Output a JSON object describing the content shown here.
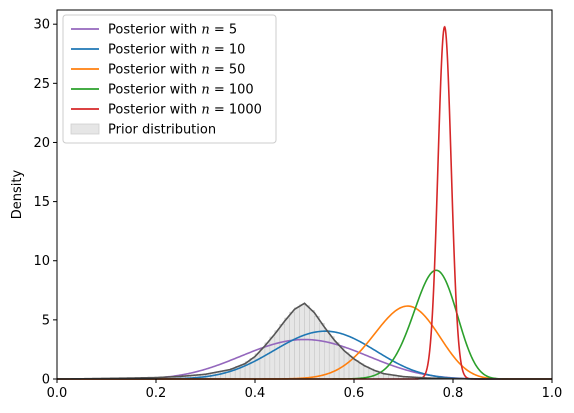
{
  "chart_data": {
    "type": "line",
    "title": "",
    "xlabel": "",
    "ylabel": "Density",
    "xlim": [
      0,
      1
    ],
    "ylim": [
      0,
      31.2
    ],
    "xticks": [
      0.0,
      0.2,
      0.4,
      0.6,
      0.8,
      1.0
    ],
    "xtick_labels": [
      "0.0",
      "0.2",
      "0.4",
      "0.6",
      "0.8",
      "1.0"
    ],
    "yticks": [
      0,
      5,
      10,
      15,
      20,
      25,
      30
    ],
    "ytick_labels": [
      "0",
      "5",
      "10",
      "15",
      "20",
      "25",
      "30"
    ],
    "grid": false,
    "legend": {
      "placement": "top-left",
      "entries": [
        {
          "prefix": "Posterior with ",
          "var": "n",
          "suffix": " = 5",
          "color": "#9467bd",
          "kind": "line"
        },
        {
          "prefix": "Posterior with ",
          "var": "n",
          "suffix": " = 10",
          "color": "#1f77b4",
          "kind": "line"
        },
        {
          "prefix": "Posterior with ",
          "var": "n",
          "suffix": " = 50",
          "color": "#ff7f0e",
          "kind": "line"
        },
        {
          "prefix": "Posterior with ",
          "var": "n",
          "suffix": " = 100",
          "color": "#2ca02c",
          "kind": "line"
        },
        {
          "prefix": "Posterior with ",
          "var": "n",
          "suffix": " = 1000",
          "color": "#d62728",
          "kind": "line"
        },
        {
          "prefix": "Prior distribution",
          "var": "",
          "suffix": "",
          "color": "#e6e6e6",
          "kind": "patch"
        }
      ]
    },
    "prior": {
      "name": "Prior distribution",
      "fill": "#e6e6e6",
      "edge": "#c8c8c8",
      "bin_width": 0.01,
      "curve_color": "#555555",
      "x": [
        0.0,
        0.05,
        0.1,
        0.15,
        0.2,
        0.25,
        0.3,
        0.35,
        0.38,
        0.4,
        0.42,
        0.44,
        0.46,
        0.48,
        0.5,
        0.52,
        0.54,
        0.56,
        0.58,
        0.6,
        0.62,
        0.64,
        0.66,
        0.7,
        0.75,
        0.8,
        0.85,
        0.9,
        1.0
      ],
      "y": [
        0.0,
        0.02,
        0.05,
        0.08,
        0.12,
        0.22,
        0.4,
        0.8,
        1.3,
        1.9,
        2.8,
        3.8,
        4.9,
        5.9,
        6.4,
        5.6,
        4.4,
        3.3,
        2.4,
        1.7,
        1.15,
        0.75,
        0.45,
        0.2,
        0.08,
        0.03,
        0.01,
        0.0,
        0.0
      ]
    },
    "series": [
      {
        "name": "Posterior with n = 5",
        "color": "#9467bd",
        "kind": "beta",
        "alpha": 9,
        "beta": 9
      },
      {
        "name": "Posterior with n = 10",
        "color": "#1f77b4",
        "kind": "beta",
        "alpha": 14,
        "beta": 12
      },
      {
        "name": "Posterior with n = 50",
        "color": "#ff7f0e",
        "kind": "beta",
        "alpha": 35,
        "beta": 15
      },
      {
        "name": "Posterior with n = 100",
        "color": "#2ca02c",
        "kind": "beta",
        "alpha": 73,
        "beta": 23
      },
      {
        "name": "Posterior with n = 1000",
        "color": "#d62728",
        "kind": "normal",
        "mean": 0.783,
        "sd": 0.0134
      }
    ]
  }
}
